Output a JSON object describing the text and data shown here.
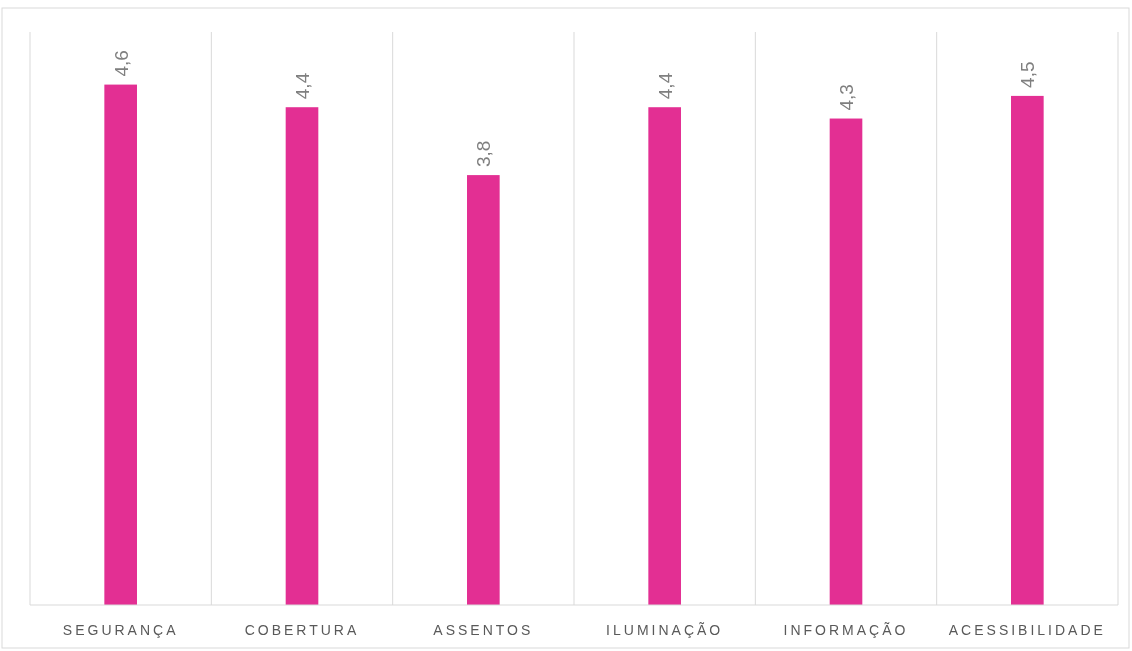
{
  "chart_data": {
    "type": "bar",
    "categories": [
      "SEGURANÇA",
      "COBERTURA",
      "ASSENTOS",
      "ILUMINAÇÃO",
      "INFORMAÇÃO",
      "ACESSIBILIDADE"
    ],
    "values": [
      4.6,
      4.4,
      3.8,
      4.4,
      4.3,
      4.5
    ],
    "value_labels": [
      "4,6",
      "4,4",
      "3,8",
      "4,4",
      "4,3",
      "4,5"
    ],
    "color": "#e32f93",
    "grid": "x",
    "tick_labels": "x"
  }
}
